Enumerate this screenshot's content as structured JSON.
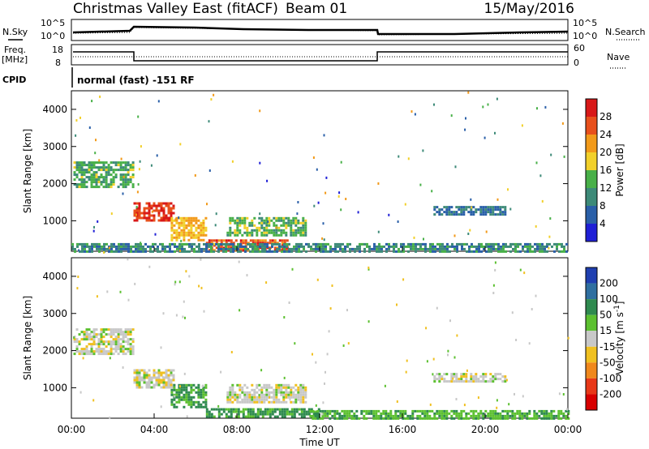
{
  "header": {
    "station": "Christmas Valley East (fitACF)",
    "beam": "Beam 01",
    "date": "15/May/2016"
  },
  "summary": {
    "left_labels": {
      "nsky": "N.Sky",
      "freq_top": "Freq.",
      "freq_unit": "[MHz]",
      "cpid": "CPID"
    },
    "right_labels": {
      "nsearch": "N.Search",
      "nave": "Nave"
    },
    "noise_ticks": [
      "10^5",
      "10^0"
    ],
    "freq_ticks": [
      "18",
      "8"
    ],
    "nave_ticks": [
      "60",
      "0"
    ],
    "cpid_text": "normal (fast) -151 RF"
  },
  "axes": {
    "x_ticks": [
      "00:00",
      "04:00",
      "08:00",
      "12:00",
      "16:00",
      "20:00",
      "00:00"
    ],
    "x_label": "Time UT",
    "y_ticks": [
      "1000",
      "2000",
      "3000",
      "4000"
    ],
    "y_label": "Slant Range [km]"
  },
  "power_colorbar": {
    "label": "Power [dB]",
    "ticks": [
      "4",
      "8",
      "12",
      "16",
      "20",
      "24",
      "28"
    ],
    "colors": [
      "#1f1fd6",
      "#2a5fa8",
      "#3d8a78",
      "#48b048",
      "#f2d02a",
      "#f29a1a",
      "#e8501c",
      "#d81818"
    ]
  },
  "velocity_colorbar": {
    "label": "Velocity [m s^-1]",
    "ticks": [
      "200",
      "100",
      "50",
      "15",
      "-15",
      "-50",
      "-100",
      "-200"
    ],
    "colors": [
      "#1f3fb0",
      "#2f6fa0",
      "#2f8a4f",
      "#5cc030",
      "#c8c8c8",
      "#f0c020",
      "#f0881c",
      "#e83818",
      "#d80000"
    ]
  },
  "chart_data": [
    {
      "type": "heatmap",
      "title": "Power",
      "xlabel": "",
      "ylabel": "Slant Range [km]",
      "xlim": [
        0,
        24
      ],
      "ylim": [
        180,
        4500
      ],
      "colorbar": {
        "label": "Power [dB]",
        "range": [
          0,
          32
        ]
      },
      "regions": [
        {
          "x": [
            0.1,
            3.0
          ],
          "y": [
            1900,
            2600
          ],
          "value": 13
        },
        {
          "x": [
            3.0,
            5.0
          ],
          "y": [
            1000,
            1500
          ],
          "value": 28
        },
        {
          "x": [
            4.8,
            6.5
          ],
          "y": [
            500,
            1100
          ],
          "value": 20
        },
        {
          "x": [
            7.5,
            11.3
          ],
          "y": [
            600,
            1100
          ],
          "value": 14
        },
        {
          "x": [
            6.5,
            10.5
          ],
          "y": [
            200,
            500
          ],
          "value": 26
        },
        {
          "x": [
            17.5,
            21.0
          ],
          "y": [
            1200,
            1400
          ],
          "value": 8
        },
        {
          "x": [
            0.0,
            24.0
          ],
          "y": [
            180,
            400
          ],
          "value": 10
        }
      ]
    },
    {
      "type": "heatmap",
      "title": "Velocity",
      "xlabel": "Time UT",
      "ylabel": "Slant Range [km]",
      "xlim": [
        0,
        24
      ],
      "ylim": [
        180,
        4500
      ],
      "colorbar": {
        "label": "Velocity [m s^-1]",
        "range": [
          -250,
          250
        ]
      },
      "regions": [
        {
          "x": [
            0.1,
            3.0
          ],
          "y": [
            1900,
            2600
          ],
          "value": 0
        },
        {
          "x": [
            3.0,
            5.0
          ],
          "y": [
            1000,
            1500
          ],
          "value": 0
        },
        {
          "x": [
            4.8,
            6.5
          ],
          "y": [
            500,
            1100
          ],
          "value": 60
        },
        {
          "x": [
            7.5,
            11.3
          ],
          "y": [
            600,
            1100
          ],
          "value": 0
        },
        {
          "x": [
            6.5,
            12.0
          ],
          "y": [
            200,
            450
          ],
          "value": 60
        },
        {
          "x": [
            11.5,
            24.0
          ],
          "y": [
            180,
            400
          ],
          "value": 40
        },
        {
          "x": [
            17.5,
            21.0
          ],
          "y": [
            1200,
            1400
          ],
          "value": 0
        }
      ]
    }
  ]
}
